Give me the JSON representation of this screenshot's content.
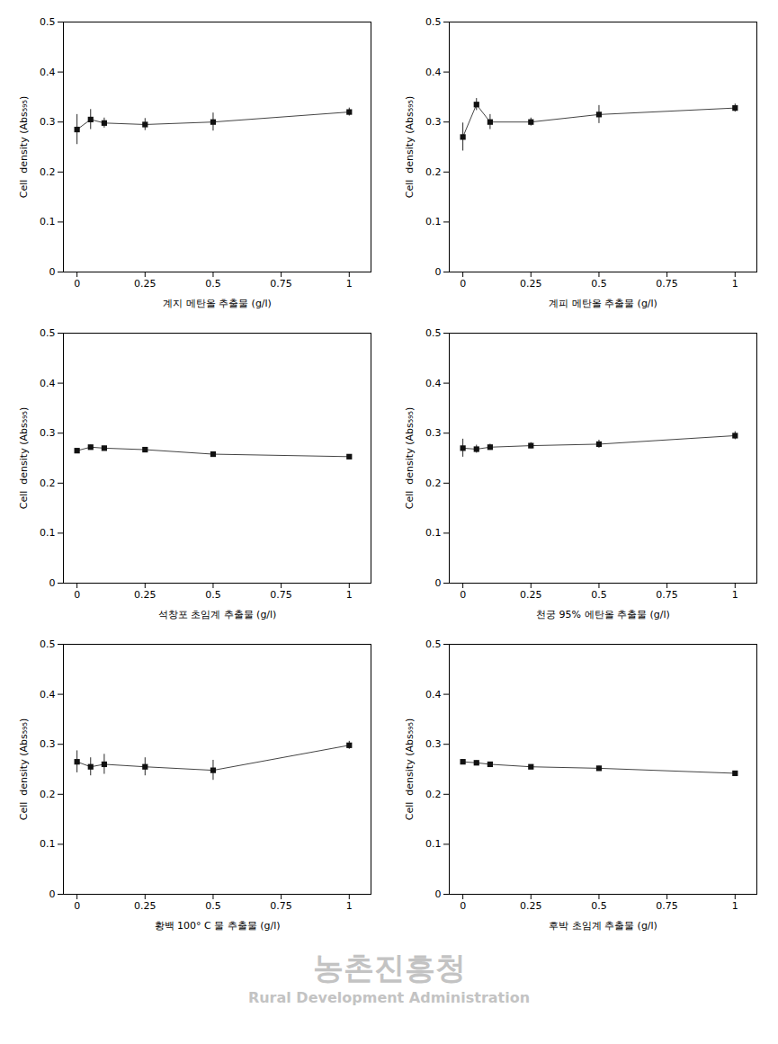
{
  "chart_data": [
    {
      "type": "line",
      "xlabel": "계지 메탄올 추출물 (g/l)",
      "ylabel": "Cell  density (Abs₅₉₅)",
      "x": [
        0,
        0.05,
        0.1,
        0.25,
        0.5,
        1.0
      ],
      "values": [
        0.285,
        0.305,
        0.298,
        0.295,
        0.3,
        0.32
      ],
      "yerr": [
        0.03,
        0.02,
        0.01,
        0.012,
        0.018,
        0.008
      ],
      "xlim": [
        -0.05,
        1.08
      ],
      "xticks": [
        0,
        0.25,
        0.5,
        0.75,
        1
      ],
      "ylim": [
        0,
        0.5
      ],
      "yticks": [
        0,
        0.1,
        0.2,
        0.3,
        0.4,
        0.5
      ],
      "marker": "square",
      "grid": false
    },
    {
      "type": "line",
      "xlabel": "계피 메탄올 추출물 (g/l)",
      "ylabel": "Cell  density (Abs₅₉₅)",
      "x": [
        0,
        0.05,
        0.1,
        0.25,
        0.5,
        1.0
      ],
      "values": [
        0.27,
        0.335,
        0.3,
        0.3,
        0.315,
        0.328
      ],
      "yerr": [
        0.028,
        0.012,
        0.015,
        0.008,
        0.018,
        0.008
      ],
      "xlim": [
        -0.05,
        1.08
      ],
      "xticks": [
        0,
        0.25,
        0.5,
        0.75,
        1
      ],
      "ylim": [
        0,
        0.5
      ],
      "yticks": [
        0,
        0.1,
        0.2,
        0.3,
        0.4,
        0.5
      ],
      "marker": "square",
      "grid": false
    },
    {
      "type": "line",
      "xlabel": "석창포 초임계 추출물 (g/l)",
      "ylabel": "Cell  density (Abs₅₉₅)",
      "x": [
        0,
        0.05,
        0.1,
        0.25,
        0.5,
        1.0
      ],
      "values": [
        0.265,
        0.272,
        0.27,
        0.267,
        0.258,
        0.253
      ],
      "yerr": [
        0.004,
        0.004,
        0.004,
        0.004,
        0.004,
        0.004
      ],
      "xlim": [
        -0.05,
        1.08
      ],
      "xticks": [
        0,
        0.25,
        0.5,
        0.75,
        1
      ],
      "ylim": [
        0,
        0.5
      ],
      "yticks": [
        0,
        0.1,
        0.2,
        0.3,
        0.4,
        0.5
      ],
      "marker": "square",
      "grid": false
    },
    {
      "type": "line",
      "xlabel": "천궁 95% 에탄올 추출물 (g/l)",
      "ylabel": "Cell  density (Abs₅₉₅)",
      "x": [
        0,
        0.05,
        0.1,
        0.25,
        0.5,
        1.0
      ],
      "values": [
        0.27,
        0.268,
        0.272,
        0.275,
        0.278,
        0.295
      ],
      "yerr": [
        0.018,
        0.008,
        0.006,
        0.006,
        0.008,
        0.008
      ],
      "xlim": [
        -0.05,
        1.08
      ],
      "xticks": [
        0,
        0.25,
        0.5,
        0.75,
        1
      ],
      "ylim": [
        0,
        0.5
      ],
      "yticks": [
        0,
        0.1,
        0.2,
        0.3,
        0.4,
        0.5
      ],
      "marker": "square",
      "grid": false
    },
    {
      "type": "line",
      "xlabel": "황백 100° C 물 추출물 (g/l)",
      "ylabel": "Cell  density (Abs₅₉₅)",
      "x": [
        0,
        0.05,
        0.1,
        0.25,
        0.5,
        1.0
      ],
      "values": [
        0.265,
        0.255,
        0.26,
        0.255,
        0.248,
        0.298
      ],
      "yerr": [
        0.022,
        0.018,
        0.02,
        0.018,
        0.02,
        0.008
      ],
      "xlim": [
        -0.05,
        1.08
      ],
      "xticks": [
        0,
        0.25,
        0.5,
        0.75,
        1
      ],
      "ylim": [
        0,
        0.5
      ],
      "yticks": [
        0,
        0.1,
        0.2,
        0.3,
        0.4,
        0.5
      ],
      "marker": "square",
      "grid": false
    },
    {
      "type": "line",
      "xlabel": "후박 초임계 추출물 (g/l)",
      "ylabel": "Cell  density (Abs₅₉₅)",
      "x": [
        0,
        0.05,
        0.1,
        0.25,
        0.5,
        1.0
      ],
      "values": [
        0.265,
        0.263,
        0.26,
        0.255,
        0.252,
        0.242
      ],
      "yerr": [
        0.004,
        0.004,
        0.004,
        0.004,
        0.004,
        0.004
      ],
      "xlim": [
        -0.05,
        1.08
      ],
      "xticks": [
        0,
        0.25,
        0.5,
        0.75,
        1
      ],
      "ylim": [
        0,
        0.5
      ],
      "yticks": [
        0,
        0.1,
        0.2,
        0.3,
        0.4,
        0.5
      ],
      "marker": "square",
      "grid": false
    }
  ],
  "annotations": [
    "농촌진흥청",
    "Rural Development Administration"
  ]
}
